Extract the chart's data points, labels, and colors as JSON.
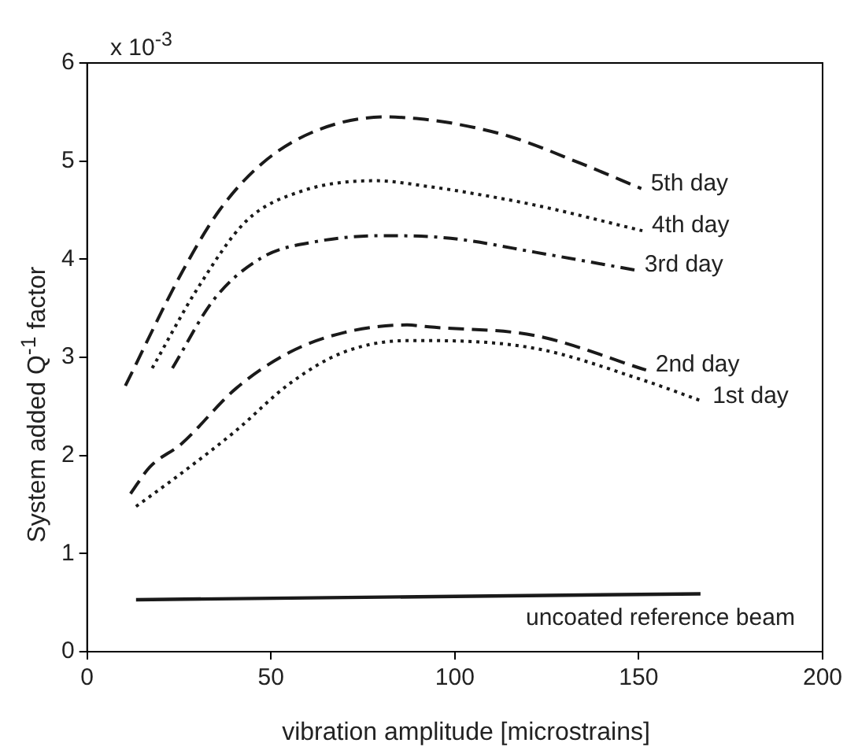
{
  "chart_data": {
    "type": "line",
    "xlabel": "vibration amplitude [microstrains]",
    "ylabel": "System added Q$^{-1}$ factor",
    "annotations": [
      "x 10$^{-3}$"
    ],
    "xlim": [
      0,
      200
    ],
    "xticks": [
      0,
      50,
      100,
      150,
      200
    ],
    "ylim": [
      0,
      6
    ],
    "yticks": [
      0,
      1,
      2,
      3,
      4,
      5,
      6
    ],
    "grid": false,
    "legend": false,
    "marker": "none",
    "series": [
      {
        "name": "5th day",
        "color": "#1a1a1a",
        "line_style": "dashed",
        "x": [
          10.4,
          25.7,
          36,
          47.7,
          62.3,
          81,
          93,
          98.7,
          115,
          134,
          150.7
        ],
        "values": [
          2.71,
          3.86,
          4.5,
          4.98,
          5.31,
          5.45,
          5.42,
          5.39,
          5.25,
          4.98,
          4.72
        ]
      },
      {
        "name": "4th day",
        "color": "#1a1a1a",
        "line_style": "dotted",
        "x": [
          17.7,
          30,
          43.3,
          58,
          78.4,
          93,
          101.8,
          122,
          151
        ],
        "values": [
          2.89,
          3.7,
          4.39,
          4.69,
          4.8,
          4.74,
          4.69,
          4.55,
          4.29
        ]
      },
      {
        "name": "3rd day",
        "color": "#1a1a1a",
        "line_style": "dashdot",
        "x": [
          23.2,
          34.5,
          47.7,
          62.3,
          81,
          93,
          101.8,
          122,
          149
        ],
        "values": [
          2.89,
          3.59,
          4.02,
          4.18,
          4.24,
          4.23,
          4.2,
          4.07,
          3.89
        ]
      },
      {
        "name": "2nd day",
        "color": "#1a1a1a",
        "line_style": "dashed",
        "x": [
          11.8,
          17,
          25.7,
          40.4,
          55,
          69.6,
          87,
          93,
          122,
          152
        ],
        "values": [
          1.61,
          1.88,
          2.12,
          2.68,
          3.05,
          3.25,
          3.33,
          3.31,
          3.22,
          2.87
        ]
      },
      {
        "name": "1st day",
        "color": "#1a1a1a",
        "line_style": "dotted",
        "x": [
          13.3,
          25.7,
          40.4,
          55,
          69.6,
          87,
          93,
          122,
          151,
          167.5
        ],
        "values": [
          1.48,
          1.82,
          2.25,
          2.73,
          3.05,
          3.17,
          3.17,
          3.09,
          2.77,
          2.55
        ]
      },
      {
        "name": "uncoated reference beam",
        "color": "#1a1a1a",
        "line_style": "solid",
        "x": [
          13.3,
          166.8
        ],
        "values": [
          0.53,
          0.59
        ]
      }
    ]
  }
}
